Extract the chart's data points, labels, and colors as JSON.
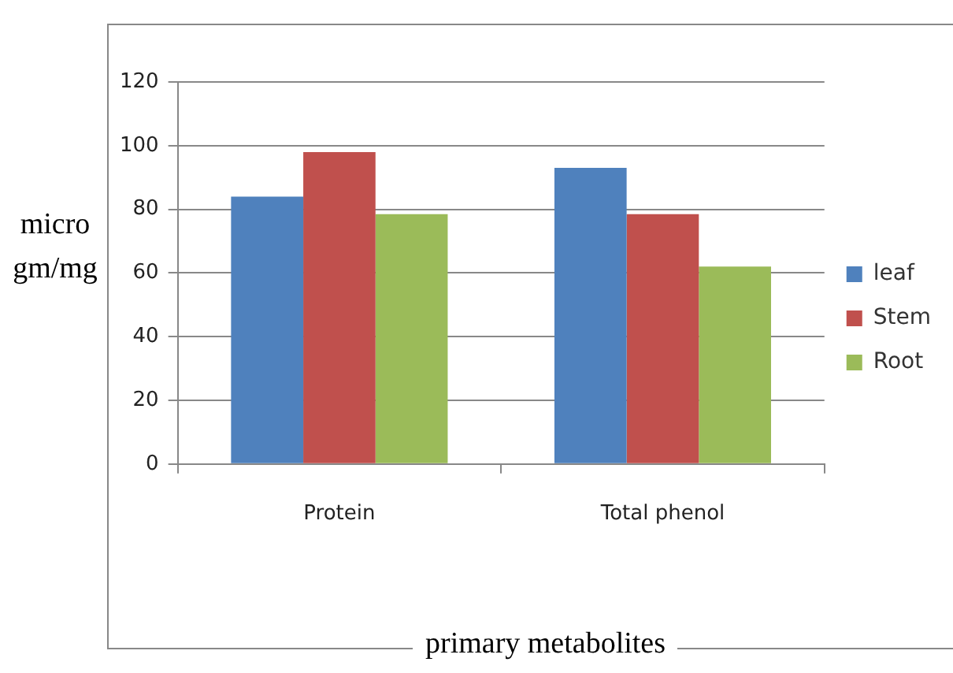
{
  "chart_data": {
    "type": "bar",
    "xlabel": "primary metabolites",
    "ylabel": "micro gm/mg",
    "categories": [
      "Protein",
      "Total phenol"
    ],
    "series": [
      {
        "name": "leaf",
        "color": "#4f81bd",
        "values": [
          84,
          93
        ]
      },
      {
        "name": "Stem",
        "color": "#c0504d",
        "values": [
          98,
          78.5
        ]
      },
      {
        "name": "Root",
        "color": "#9bbb59",
        "values": [
          78.5,
          62
        ]
      }
    ],
    "ylim": [
      0,
      120
    ],
    "yticks": [
      0,
      20,
      40,
      60,
      80,
      100,
      120
    ],
    "grid": "y",
    "legend": "right"
  }
}
